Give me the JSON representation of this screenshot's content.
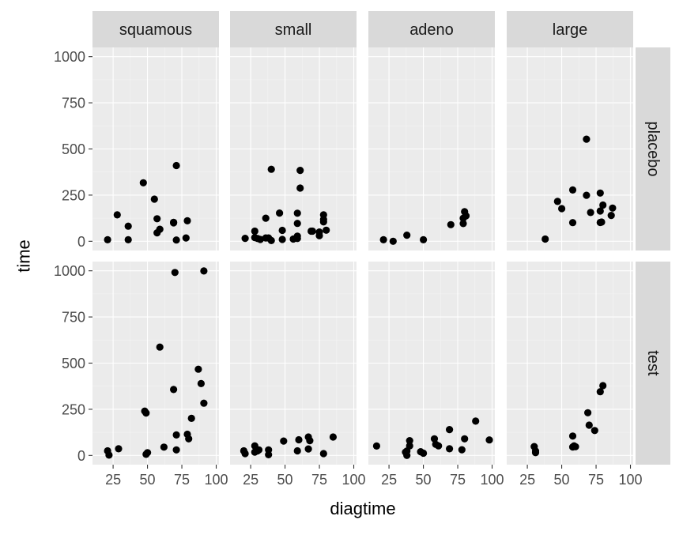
{
  "chart_data": {
    "type": "scatter",
    "facet_cols": [
      "squamous",
      "small",
      "adeno",
      "large"
    ],
    "facet_rows": [
      "placebo",
      "test"
    ],
    "xlabel": "diagtime",
    "ylabel": "time",
    "xlim": [
      10,
      102
    ],
    "ylim": [
      -50,
      1050
    ],
    "x_ticks": [
      25,
      50,
      75,
      100
    ],
    "x_tick_labels": [
      "25",
      "50",
      "75",
      "100"
    ],
    "y_ticks": [
      0,
      250,
      500,
      750,
      1000
    ],
    "y_tick_labels": [
      "0",
      "250",
      "500",
      "750",
      "1000"
    ],
    "grid": true,
    "panels": [
      {
        "row": "placebo",
        "col": "squamous",
        "points": [
          [
            21,
            8
          ],
          [
            28,
            143
          ],
          [
            36,
            82
          ],
          [
            36,
            8
          ],
          [
            47,
            317
          ],
          [
            55,
            228
          ],
          [
            57,
            46
          ],
          [
            57,
            122
          ],
          [
            59,
            65
          ],
          [
            69,
            100
          ],
          [
            69,
            103
          ],
          [
            71,
            410
          ],
          [
            71,
            7
          ],
          [
            78,
            18
          ],
          [
            79,
            111
          ]
        ]
      },
      {
        "row": "placebo",
        "col": "small",
        "points": [
          [
            21,
            16
          ],
          [
            28,
            55
          ],
          [
            28,
            20
          ],
          [
            30,
            15
          ],
          [
            32,
            10
          ],
          [
            36,
            125
          ],
          [
            36,
            18
          ],
          [
            38,
            18
          ],
          [
            40,
            390
          ],
          [
            40,
            4
          ],
          [
            46,
            153
          ],
          [
            48,
            59
          ],
          [
            48,
            10
          ],
          [
            56,
            12
          ],
          [
            59,
            152
          ],
          [
            59,
            97
          ],
          [
            59,
            28
          ],
          [
            59,
            15
          ],
          [
            61,
            384
          ],
          [
            61,
            288
          ],
          [
            69,
            55
          ],
          [
            70,
            55
          ],
          [
            75,
            30
          ],
          [
            75,
            50
          ],
          [
            78,
            143
          ],
          [
            78,
            118
          ],
          [
            78,
            105
          ],
          [
            80,
            60
          ]
        ]
      },
      {
        "row": "placebo",
        "col": "adeno",
        "points": [
          [
            21,
            8
          ],
          [
            28,
            0
          ],
          [
            38,
            33
          ],
          [
            50,
            8
          ],
          [
            70,
            90
          ],
          [
            79,
            96
          ],
          [
            79,
            125
          ],
          [
            80,
            160
          ],
          [
            81,
            138
          ]
        ]
      },
      {
        "row": "placebo",
        "col": "large",
        "points": [
          [
            38,
            12
          ],
          [
            47,
            216
          ],
          [
            50,
            177
          ],
          [
            58,
            278
          ],
          [
            58,
            101
          ],
          [
            68,
            553
          ],
          [
            68,
            249
          ],
          [
            71,
            156
          ],
          [
            78,
            261
          ],
          [
            78,
            164
          ],
          [
            78,
            102
          ],
          [
            79,
            104
          ],
          [
            80,
            196
          ],
          [
            86,
            140
          ],
          [
            87,
            180
          ]
        ]
      },
      {
        "row": "test",
        "col": "squamous",
        "points": [
          [
            21,
            25
          ],
          [
            22,
            2
          ],
          [
            29,
            36
          ],
          [
            48,
            240
          ],
          [
            49,
            230
          ],
          [
            49,
            6
          ],
          [
            50,
            15
          ],
          [
            59,
            587
          ],
          [
            62,
            45
          ],
          [
            69,
            357
          ],
          [
            70,
            991
          ],
          [
            71,
            30
          ],
          [
            71,
            111
          ],
          [
            79,
            115
          ],
          [
            80,
            90
          ],
          [
            82,
            201
          ],
          [
            87,
            467
          ],
          [
            89,
            389
          ],
          [
            91,
            283
          ],
          [
            91,
            999
          ]
        ]
      },
      {
        "row": "test",
        "col": "small",
        "points": [
          [
            20,
            25
          ],
          [
            21,
            10
          ],
          [
            28,
            52
          ],
          [
            28,
            18
          ],
          [
            30,
            25
          ],
          [
            31,
            30
          ],
          [
            38,
            4
          ],
          [
            38,
            30
          ],
          [
            49,
            78
          ],
          [
            59,
            25
          ],
          [
            60,
            85
          ],
          [
            67,
            35
          ],
          [
            67,
            100
          ],
          [
            68,
            80
          ],
          [
            78,
            10
          ],
          [
            85,
            100
          ]
        ]
      },
      {
        "row": "test",
        "col": "adeno",
        "points": [
          [
            16,
            51
          ],
          [
            37,
            18
          ],
          [
            38,
            0
          ],
          [
            38,
            24
          ],
          [
            40,
            80
          ],
          [
            40,
            52
          ],
          [
            48,
            20
          ],
          [
            50,
            12
          ],
          [
            58,
            90
          ],
          [
            59,
            60
          ],
          [
            61,
            52
          ],
          [
            69,
            140
          ],
          [
            69,
            36
          ],
          [
            78,
            31
          ],
          [
            80,
            90
          ],
          [
            88,
            186
          ],
          [
            98,
            84
          ]
        ]
      },
      {
        "row": "test",
        "col": "large",
        "points": [
          [
            30,
            48
          ],
          [
            31,
            15
          ],
          [
            31,
            24
          ],
          [
            58,
            105
          ],
          [
            58,
            46
          ],
          [
            59,
            52
          ],
          [
            60,
            47
          ],
          [
            69,
            231
          ],
          [
            70,
            164
          ],
          [
            74,
            135
          ],
          [
            78,
            345
          ],
          [
            80,
            378
          ]
        ]
      }
    ]
  }
}
